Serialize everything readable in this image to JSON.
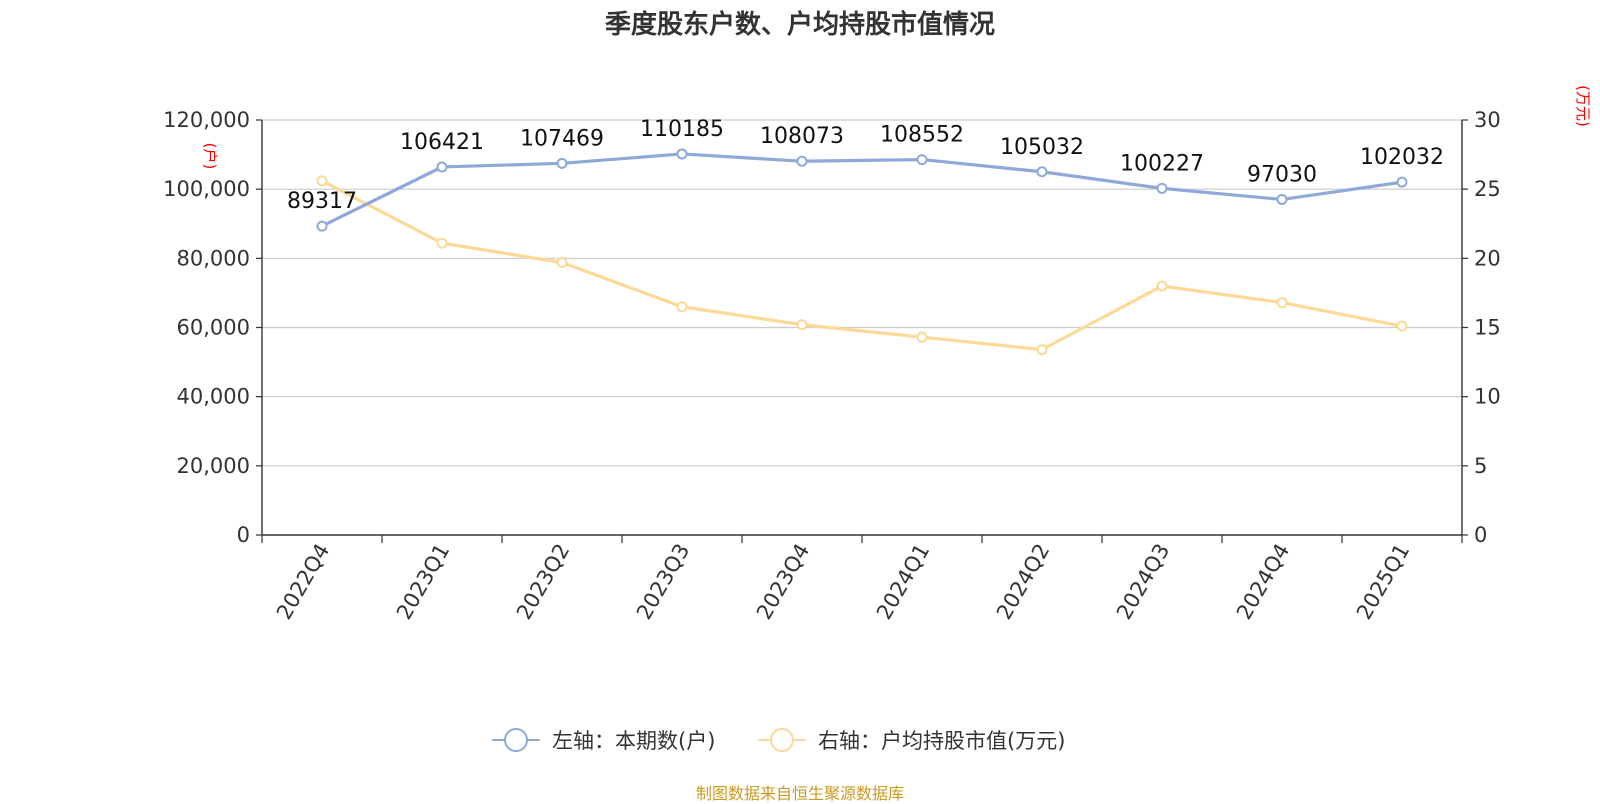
{
  "title": "季度股东户数、户均持股市值情况",
  "source": "制图数据来自恒生聚源数据库",
  "colors": {
    "left_series": "#8ea9d8",
    "right_series": "#fcd996",
    "axis": "#333333",
    "grid": "#cccccc",
    "unit": "#ff0000",
    "source": "#cc9a22"
  },
  "chart_data": {
    "type": "line",
    "title": "季度股东户数、户均持股市值情况",
    "categories": [
      "2022Q4",
      "2023Q1",
      "2023Q2",
      "2023Q3",
      "2023Q4",
      "2024Q1",
      "2024Q2",
      "2024Q3",
      "2024Q4",
      "2025Q1"
    ],
    "left_axis": {
      "unit": "(户)",
      "range": [
        0,
        120000
      ],
      "ticks": [
        "0",
        "20,000",
        "40,000",
        "60,000",
        "80,000",
        "100,000",
        "120,000"
      ]
    },
    "right_axis": {
      "unit": "(万元)",
      "range": [
        0,
        30
      ],
      "ticks": [
        "0",
        "5",
        "10",
        "15",
        "20",
        "25",
        "30"
      ]
    },
    "series": [
      {
        "name": "左轴：本期数(户)",
        "axis": "left",
        "values": [
          89317,
          106421,
          107469,
          110185,
          108073,
          108552,
          105032,
          100227,
          97030,
          102032
        ],
        "data_labels": [
          "89317",
          "106421",
          "107469",
          "110185",
          "108073",
          "108552",
          "105032",
          "100227",
          "97030",
          "102032"
        ]
      },
      {
        "name": "右轴：户均持股市值(万元)",
        "axis": "right",
        "values": [
          25.6,
          21.1,
          19.7,
          16.5,
          15.2,
          14.3,
          13.4,
          18.0,
          16.8,
          15.1
        ]
      }
    ],
    "grid": true,
    "legend_position": "bottom-center"
  }
}
